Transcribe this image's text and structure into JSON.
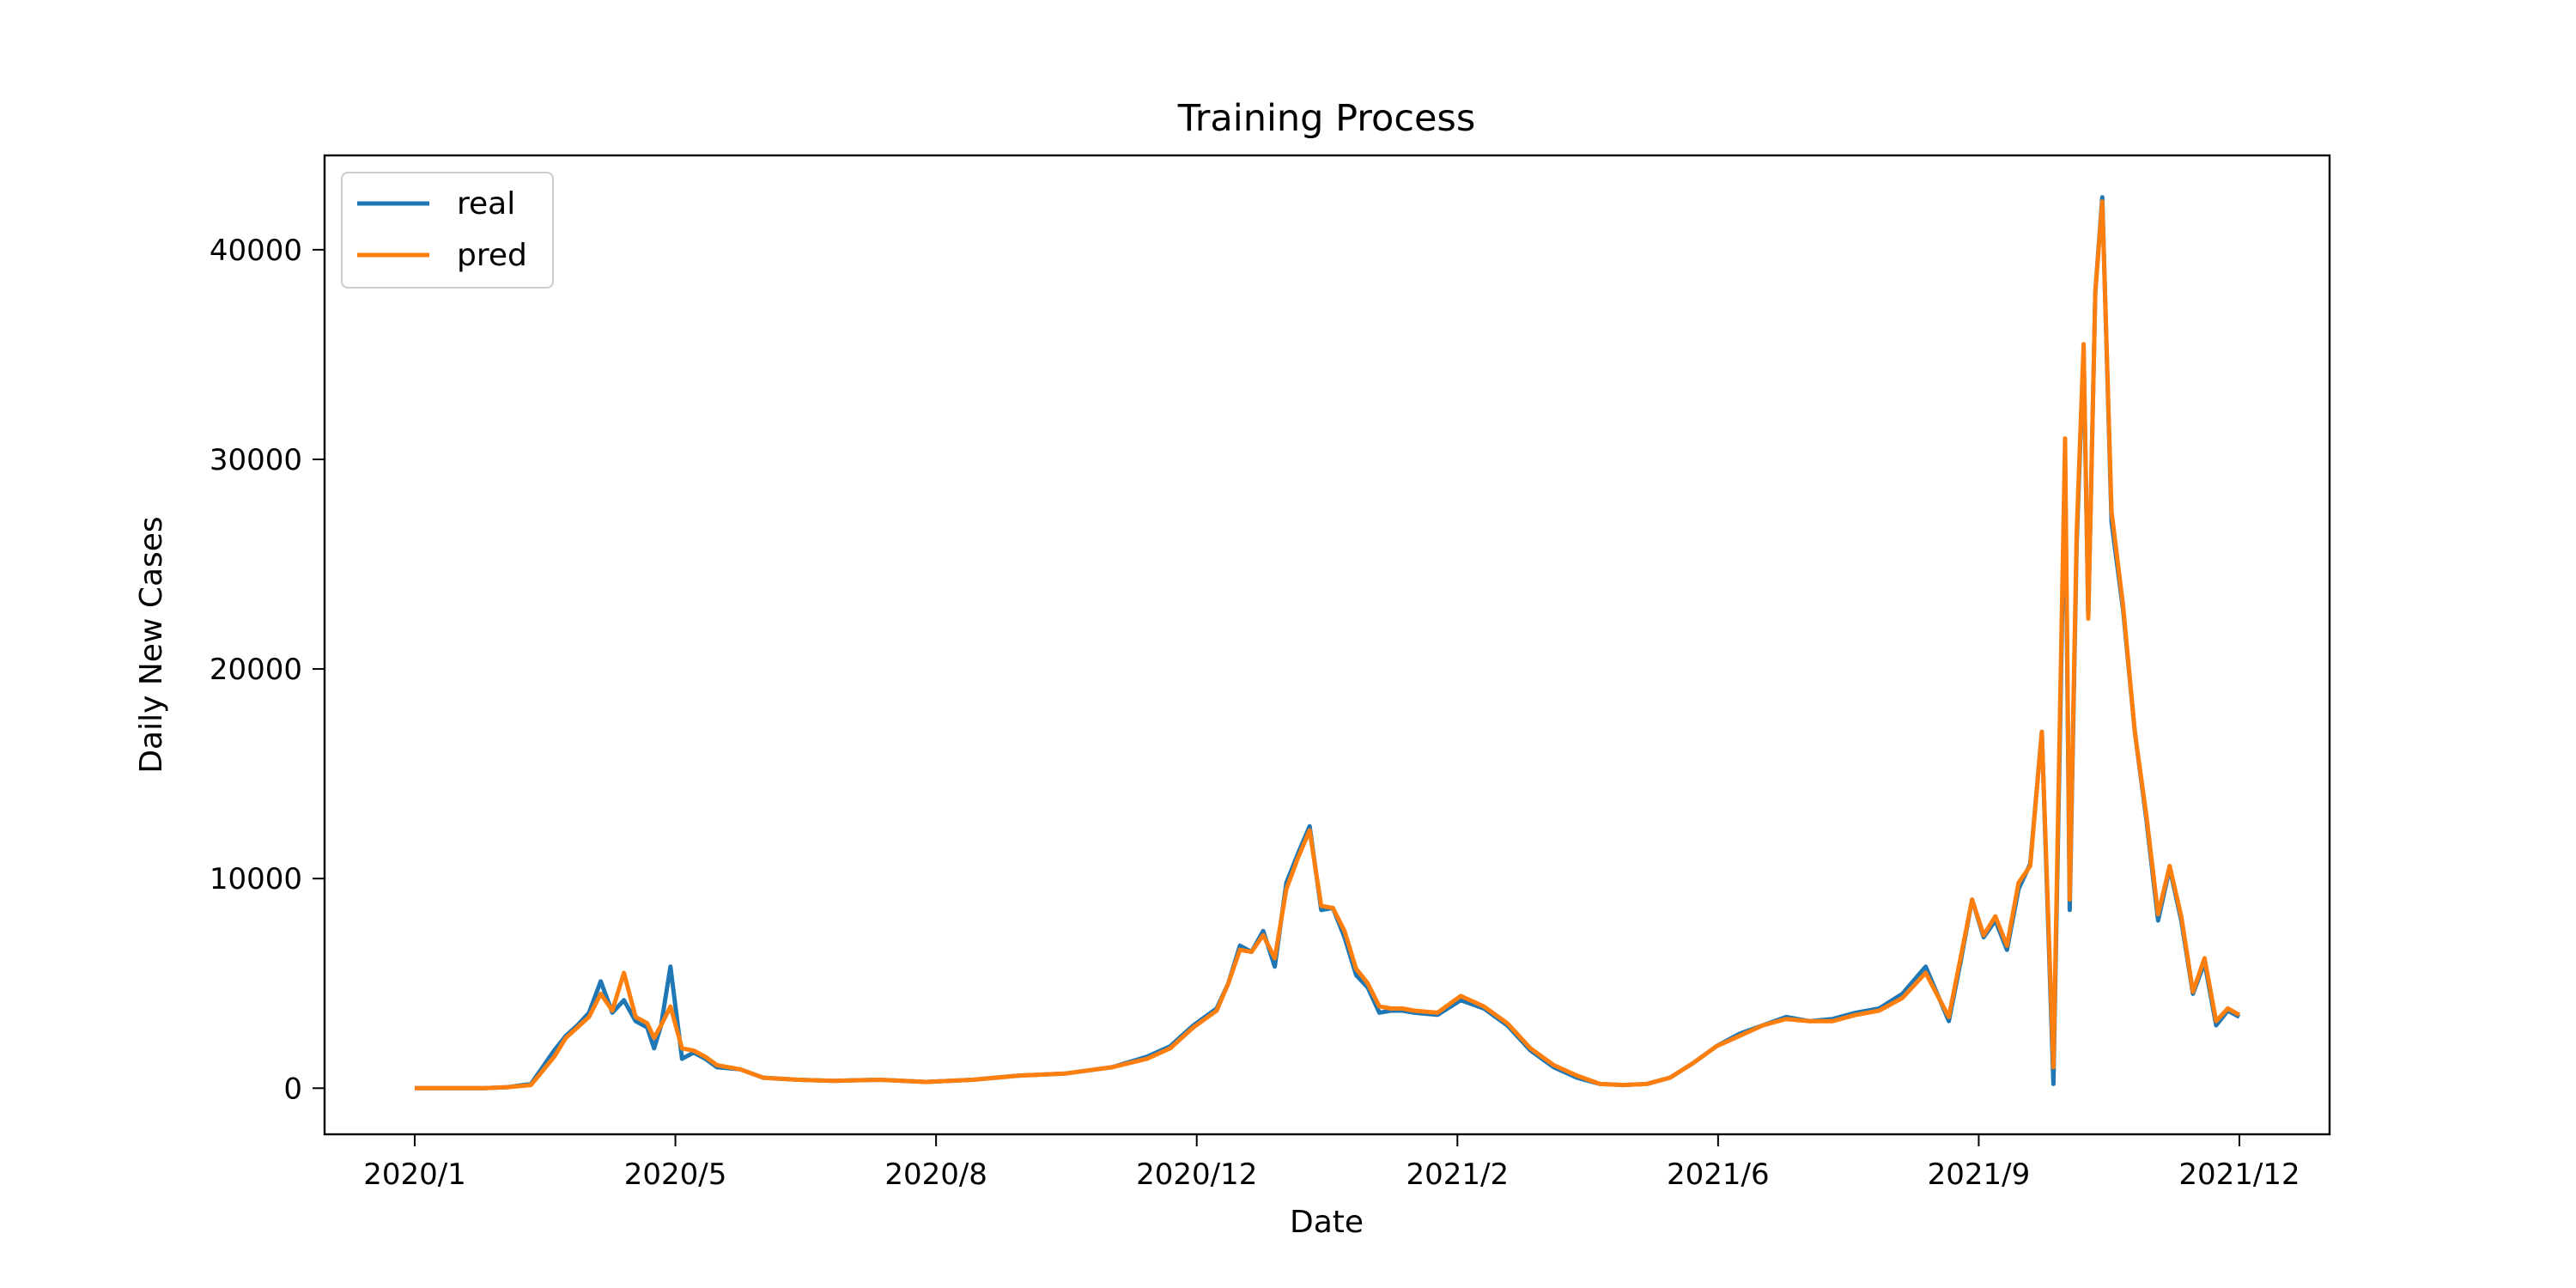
{
  "chart_data": {
    "type": "line",
    "title": "Training Process",
    "xlabel": "Date",
    "ylabel": "Daily New Cases",
    "x_ticks": [
      "2020/1",
      "2020/5",
      "2020/8",
      "2020/12",
      "2021/2",
      "2021/6",
      "2021/9",
      "2021/12"
    ],
    "y_ticks": [
      0,
      10000,
      20000,
      30000,
      40000
    ],
    "ylim": [
      -2200,
      44500
    ],
    "grid": false,
    "legend_position": "top-left",
    "x": [
      0,
      30,
      40,
      50,
      60,
      65,
      70,
      75,
      80,
      85,
      90,
      95,
      100,
      103,
      106,
      110,
      115,
      120,
      125,
      130,
      140,
      150,
      165,
      180,
      200,
      220,
      240,
      260,
      280,
      300,
      315,
      325,
      335,
      345,
      350,
      355,
      360,
      365,
      370,
      375,
      380,
      385,
      390,
      395,
      400,
      405,
      410,
      415,
      420,
      425,
      430,
      440,
      450,
      460,
      470,
      480,
      490,
      500,
      510,
      520,
      530,
      540,
      550,
      560,
      570,
      580,
      590,
      600,
      610,
      620,
      630,
      640,
      650,
      660,
      665,
      670,
      675,
      680,
      685,
      690,
      695,
      700,
      705,
      710,
      712,
      715,
      718,
      720,
      723,
      726,
      730,
      735,
      740,
      745,
      750,
      755,
      760,
      765,
      770,
      775,
      780,
      785
    ],
    "series": [
      {
        "name": "real",
        "color": "#1f77b4",
        "values": [
          0,
          0,
          50,
          200,
          1800,
          2500,
          3000,
          3600,
          5100,
          3600,
          4200,
          3200,
          2900,
          1900,
          3000,
          5800,
          1400,
          1700,
          1400,
          1000,
          900,
          500,
          400,
          350,
          400,
          300,
          400,
          600,
          700,
          1000,
          1500,
          2000,
          3000,
          3800,
          5000,
          6800,
          6500,
          7500,
          5800,
          9800,
          11200,
          12500,
          8500,
          8600,
          7200,
          5400,
          4800,
          3600,
          3700,
          3700,
          3600,
          3500,
          4200,
          3800,
          3000,
          1800,
          1000,
          500,
          200,
          150,
          200,
          500,
          1200,
          2000,
          2600,
          3000,
          3400,
          3200,
          3300,
          3600,
          3800,
          4500,
          5800,
          3200,
          6000,
          9000,
          7200,
          8000,
          6600,
          9500,
          10700,
          17000,
          200,
          30000,
          8500,
          26000,
          35200,
          22500,
          38000,
          42500,
          27000,
          22800,
          17000,
          12800,
          8000,
          10500,
          8000,
          4500,
          6000,
          3000,
          3700,
          3400
        ]
      },
      {
        "name": "pred",
        "color": "#ff7f0e",
        "values": [
          0,
          0,
          50,
          150,
          1500,
          2400,
          2900,
          3400,
          4500,
          3700,
          5500,
          3400,
          3100,
          2400,
          3000,
          3900,
          1900,
          1800,
          1500,
          1100,
          900,
          500,
          400,
          350,
          400,
          300,
          400,
          600,
          700,
          1000,
          1400,
          1900,
          2900,
          3700,
          5000,
          6600,
          6500,
          7300,
          6200,
          9500,
          11000,
          12300,
          8700,
          8600,
          7500,
          5700,
          5000,
          3900,
          3800,
          3800,
          3700,
          3600,
          4400,
          3900,
          3100,
          1900,
          1100,
          600,
          200,
          150,
          200,
          500,
          1200,
          2000,
          2500,
          3000,
          3300,
          3200,
          3200,
          3500,
          3700,
          4300,
          5500,
          3400,
          6200,
          9000,
          7300,
          8200,
          6800,
          9800,
          10600,
          17000,
          1000,
          31000,
          9000,
          26500,
          35500,
          22400,
          38000,
          42300,
          27500,
          23000,
          17000,
          13000,
          8300,
          10600,
          8200,
          4600,
          6200,
          3200,
          3800,
          3500
        ]
      }
    ]
  }
}
